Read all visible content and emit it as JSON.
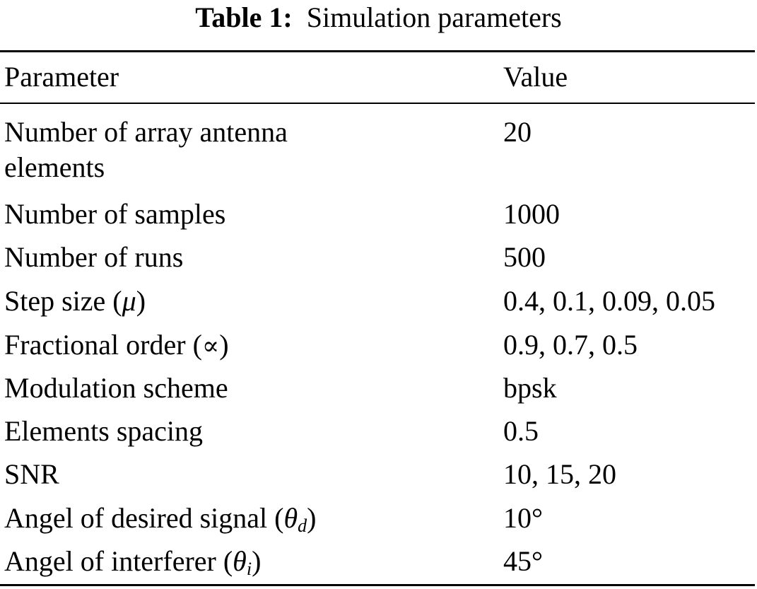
{
  "caption": {
    "label": "Table 1:",
    "text": "Simulation parameters"
  },
  "table": {
    "headers": {
      "parameter": "Parameter",
      "value": "Value"
    },
    "rows": [
      {
        "parameter": "Number of array antenna elements",
        "value": "20"
      },
      {
        "parameter": "Number of samples",
        "value": "1000"
      },
      {
        "parameter": "Number of runs",
        "value": "500"
      },
      {
        "parameter_prefix": "Step size (",
        "parameter_symbol": "μ",
        "parameter_suffix": ")",
        "value": "0.4, 0.1, 0.09, 0.05"
      },
      {
        "parameter_prefix": "Fractional order (",
        "parameter_symbol": "∝",
        "parameter_suffix": ")",
        "value": "0.9, 0.7, 0.5"
      },
      {
        "parameter": "Modulation scheme",
        "value": "bpsk"
      },
      {
        "parameter": "Elements spacing",
        "value": "0.5"
      },
      {
        "parameter": "SNR",
        "value": "10, 15, 20"
      },
      {
        "parameter_prefix": "Angel of desired signal (",
        "parameter_symbol": "θ",
        "parameter_subscript": "d",
        "parameter_suffix": ")",
        "value": "10°"
      },
      {
        "parameter_prefix": "Angel of interferer (",
        "parameter_symbol": "θ",
        "parameter_subscript": "i",
        "parameter_suffix": ")",
        "value": "45°"
      }
    ]
  }
}
